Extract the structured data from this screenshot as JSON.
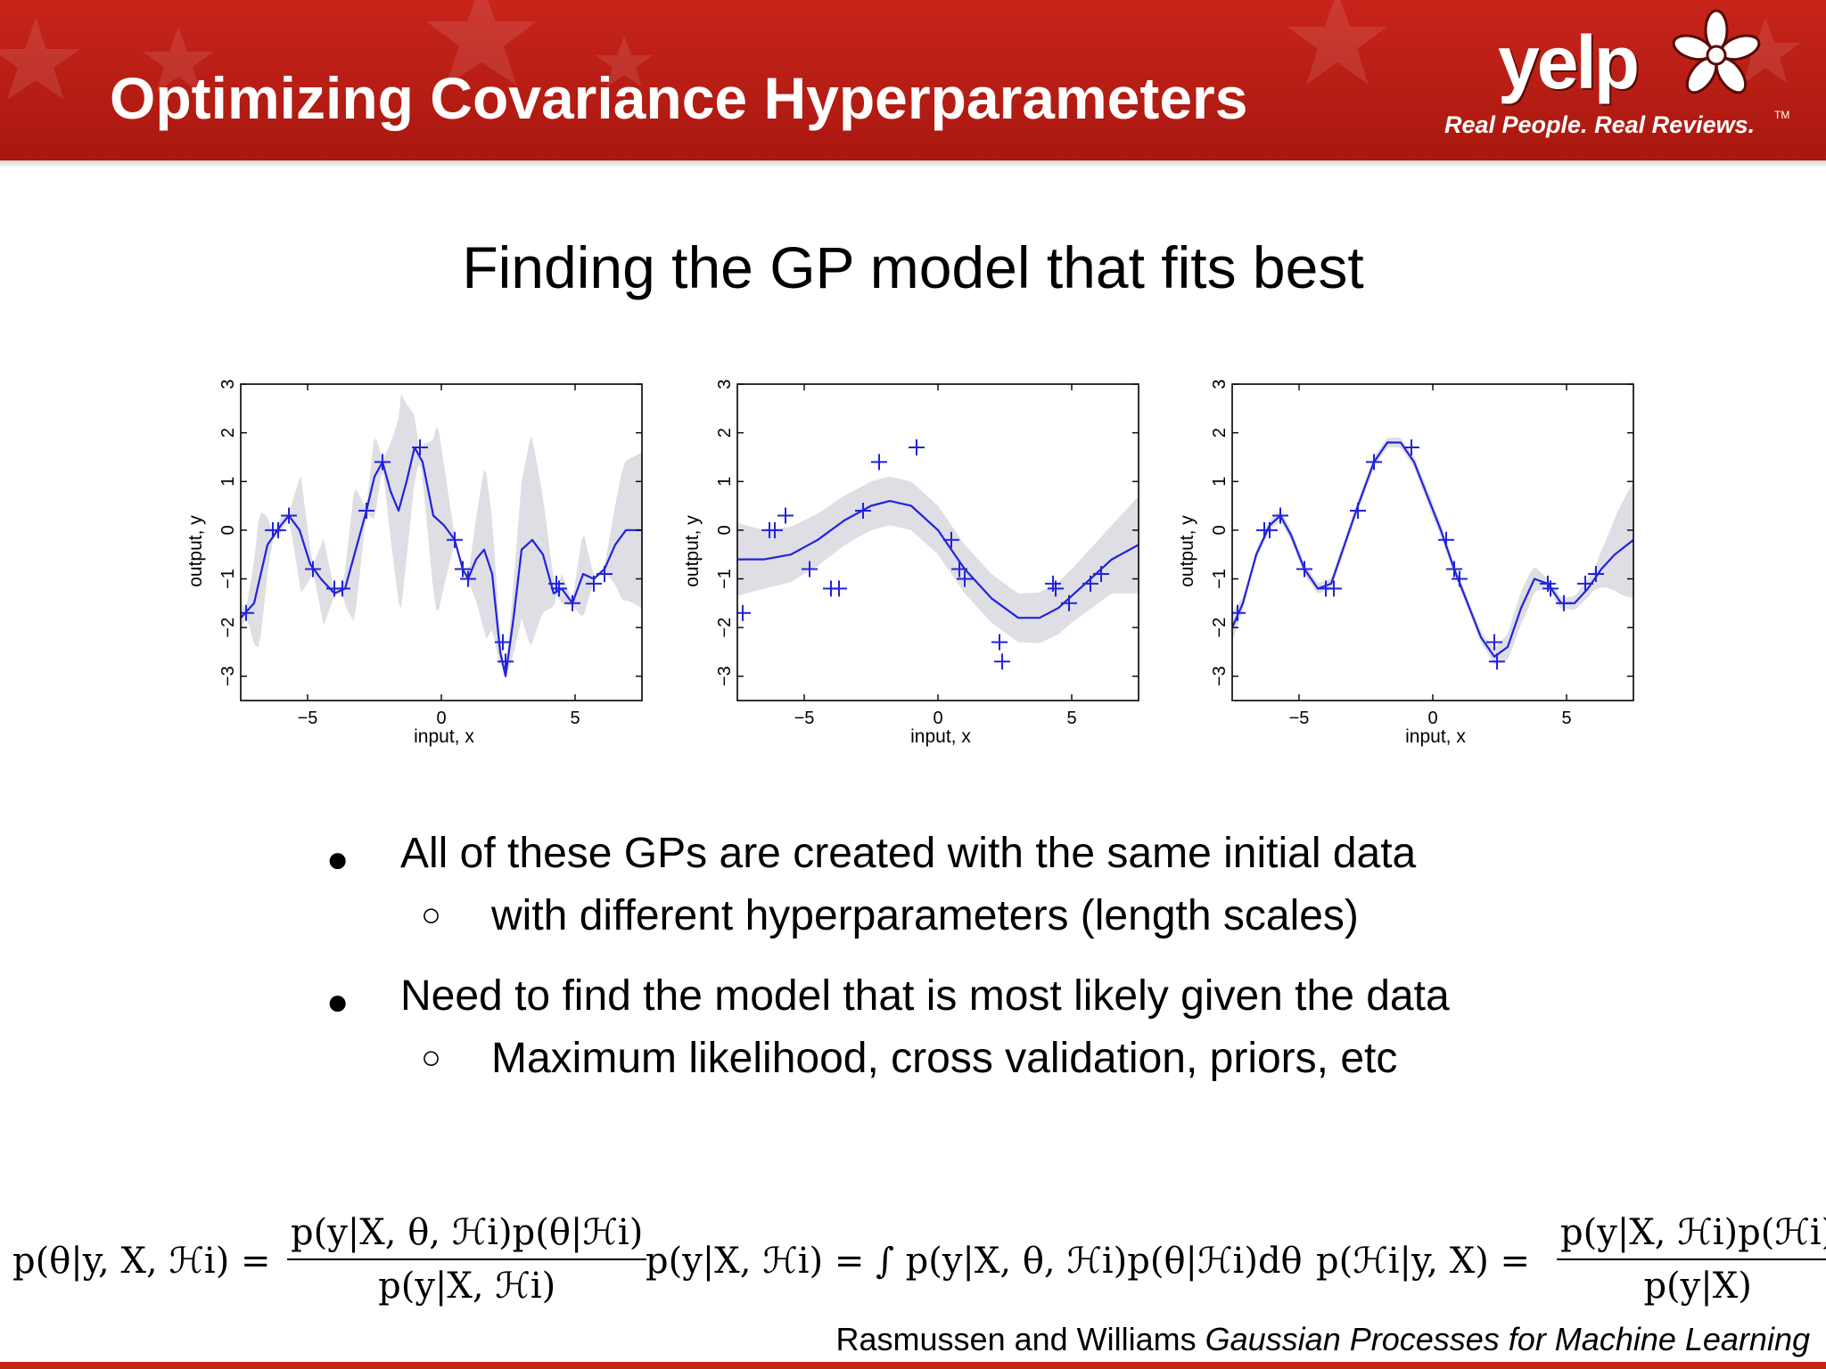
{
  "header": {
    "title": "Optimizing Covariance Hyperparameters",
    "brand_color": "#c8241a",
    "logo": {
      "word": "yelp",
      "tagline": "Real People. Real Reviews.",
      "tm": "TM"
    }
  },
  "subtitle": "Finding the GP model that fits best",
  "plots": [
    {
      "xlabel": "input, x",
      "ylabel": "output, y",
      "xticks": [
        "−5",
        "0",
        "5"
      ],
      "yticks": [
        "−3",
        "−2",
        "−1",
        "0",
        "1",
        "2",
        "3"
      ]
    },
    {
      "xlabel": "input, x",
      "ylabel": "output, y",
      "xticks": [
        "−5",
        "0",
        "5"
      ],
      "yticks": [
        "−3",
        "−2",
        "−1",
        "0",
        "1",
        "2",
        "3"
      ]
    },
    {
      "xlabel": "input, x",
      "ylabel": "output, y",
      "xticks": [
        "−5",
        "0",
        "5"
      ],
      "yticks": [
        "−3",
        "−2",
        "−1",
        "0",
        "1",
        "2",
        "3"
      ]
    }
  ],
  "chart_data": {
    "type": "line",
    "xlim": [
      -7.5,
      7.5
    ],
    "ylim": [
      -3.5,
      3
    ],
    "mean_color": "#2222dd",
    "band_color": "#dedee4",
    "observations": {
      "x": [
        -7.3,
        -6.3,
        -6.1,
        -5.7,
        -4.8,
        -4.0,
        -3.7,
        -2.8,
        -2.2,
        -0.8,
        0.5,
        0.8,
        1.0,
        2.3,
        2.4,
        4.3,
        4.4,
        4.9,
        5.7,
        6.1
      ],
      "y": [
        -1.7,
        0.0,
        0.0,
        0.3,
        -0.8,
        -1.2,
        -1.2,
        0.4,
        1.4,
        1.7,
        -0.2,
        -0.8,
        -1.0,
        -2.3,
        -2.7,
        -1.1,
        -1.2,
        -1.5,
        -1.1,
        -0.9
      ]
    },
    "panels": [
      {
        "mean": [
          [
            -7.5,
            -1.8
          ],
          [
            -7.0,
            -1.5
          ],
          [
            -6.5,
            -0.3
          ],
          [
            -6.0,
            0.1
          ],
          [
            -5.7,
            0.3
          ],
          [
            -5.3,
            0.0
          ],
          [
            -4.9,
            -0.7
          ],
          [
            -4.5,
            -1.0
          ],
          [
            -4.0,
            -1.3
          ],
          [
            -3.6,
            -1.2
          ],
          [
            -3.2,
            -0.4
          ],
          [
            -2.8,
            0.4
          ],
          [
            -2.5,
            1.1
          ],
          [
            -2.2,
            1.4
          ],
          [
            -1.9,
            0.8
          ],
          [
            -1.6,
            0.4
          ],
          [
            -1.3,
            1.0
          ],
          [
            -1.0,
            1.7
          ],
          [
            -0.7,
            1.4
          ],
          [
            -0.3,
            0.3
          ],
          [
            0.1,
            0.1
          ],
          [
            0.5,
            -0.2
          ],
          [
            0.8,
            -0.8
          ],
          [
            1.0,
            -1.0
          ],
          [
            1.3,
            -0.6
          ],
          [
            1.6,
            -0.4
          ],
          [
            1.9,
            -0.9
          ],
          [
            2.2,
            -2.5
          ],
          [
            2.4,
            -3.0
          ],
          [
            2.7,
            -1.8
          ],
          [
            3.0,
            -0.4
          ],
          [
            3.4,
            -0.2
          ],
          [
            3.8,
            -0.5
          ],
          [
            4.2,
            -1.3
          ],
          [
            4.5,
            -1.2
          ],
          [
            4.9,
            -1.5
          ],
          [
            5.3,
            -0.9
          ],
          [
            5.7,
            -1.0
          ],
          [
            6.1,
            -0.8
          ],
          [
            6.5,
            -0.3
          ],
          [
            6.9,
            0.0
          ],
          [
            7.5,
            0.0
          ]
        ],
        "band_halfwidth": [
          [
            -7.5,
            0.3
          ],
          [
            -7.3,
            0.05
          ],
          [
            -6.8,
            1.4
          ],
          [
            -6.3,
            0.05
          ],
          [
            -6.0,
            0.15
          ],
          [
            -5.7,
            0.05
          ],
          [
            -5.25,
            1.2
          ],
          [
            -4.8,
            0.05
          ],
          [
            -4.4,
            0.9
          ],
          [
            -4.0,
            0.05
          ],
          [
            -3.7,
            0.05
          ],
          [
            -3.25,
            1.4
          ],
          [
            -2.8,
            0.05
          ],
          [
            -2.5,
            0.9
          ],
          [
            -2.2,
            0.05
          ],
          [
            -1.5,
            2.2
          ],
          [
            -0.8,
            0.05
          ],
          [
            -0.15,
            2.0
          ],
          [
            0.5,
            0.05
          ],
          [
            0.8,
            0.05
          ],
          [
            1.0,
            0.05
          ],
          [
            1.65,
            1.8
          ],
          [
            2.3,
            0.05
          ],
          [
            2.4,
            0.05
          ],
          [
            3.35,
            2.2
          ],
          [
            4.3,
            0.05
          ],
          [
            4.5,
            0.3
          ],
          [
            4.9,
            0.05
          ],
          [
            5.3,
            0.9
          ],
          [
            5.7,
            0.05
          ],
          [
            6.1,
            0.05
          ],
          [
            6.8,
            1.4
          ],
          [
            7.5,
            1.6
          ]
        ]
      },
      {
        "mean": [
          [
            -7.5,
            -0.6
          ],
          [
            -6.5,
            -0.6
          ],
          [
            -5.5,
            -0.5
          ],
          [
            -4.5,
            -0.2
          ],
          [
            -3.5,
            0.2
          ],
          [
            -2.5,
            0.5
          ],
          [
            -1.8,
            0.6
          ],
          [
            -1.0,
            0.5
          ],
          [
            0.0,
            0.0
          ],
          [
            0.5,
            -0.4
          ],
          [
            1.0,
            -0.8
          ],
          [
            2.0,
            -1.4
          ],
          [
            3.0,
            -1.8
          ],
          [
            3.8,
            -1.8
          ],
          [
            4.5,
            -1.6
          ],
          [
            5.5,
            -1.1
          ],
          [
            6.5,
            -0.6
          ],
          [
            7.5,
            -0.3
          ]
        ],
        "band_halfwidth": [
          [
            -7.5,
            0.75
          ],
          [
            -6.5,
            0.6
          ],
          [
            -5.0,
            0.55
          ],
          [
            -3.0,
            0.5
          ],
          [
            -1.0,
            0.5
          ],
          [
            1.0,
            0.5
          ],
          [
            3.0,
            0.5
          ],
          [
            5.0,
            0.55
          ],
          [
            6.5,
            0.7
          ],
          [
            7.5,
            1.0
          ]
        ]
      },
      {
        "mean": [
          [
            -7.5,
            -2.0
          ],
          [
            -7.1,
            -1.5
          ],
          [
            -6.6,
            -0.5
          ],
          [
            -6.1,
            0.1
          ],
          [
            -5.7,
            0.3
          ],
          [
            -5.3,
            -0.1
          ],
          [
            -4.8,
            -0.8
          ],
          [
            -4.3,
            -1.2
          ],
          [
            -3.8,
            -1.1
          ],
          [
            -3.3,
            -0.3
          ],
          [
            -2.8,
            0.5
          ],
          [
            -2.2,
            1.4
          ],
          [
            -1.7,
            1.8
          ],
          [
            -1.2,
            1.8
          ],
          [
            -0.7,
            1.4
          ],
          [
            -0.2,
            0.7
          ],
          [
            0.3,
            0.0
          ],
          [
            0.8,
            -0.8
          ],
          [
            1.3,
            -1.5
          ],
          [
            1.8,
            -2.2
          ],
          [
            2.3,
            -2.6
          ],
          [
            2.8,
            -2.4
          ],
          [
            3.3,
            -1.6
          ],
          [
            3.8,
            -1.0
          ],
          [
            4.3,
            -1.1
          ],
          [
            4.8,
            -1.5
          ],
          [
            5.3,
            -1.5
          ],
          [
            5.8,
            -1.2
          ],
          [
            6.3,
            -0.8
          ],
          [
            6.8,
            -0.5
          ],
          [
            7.5,
            -0.2
          ]
        ],
        "band_halfwidth": [
          [
            -7.5,
            0.3
          ],
          [
            -7.0,
            0.1
          ],
          [
            -6.0,
            0.1
          ],
          [
            -5.0,
            0.12
          ],
          [
            -4.0,
            0.1
          ],
          [
            -3.0,
            0.12
          ],
          [
            -2.0,
            0.1
          ],
          [
            -1.0,
            0.1
          ],
          [
            0.0,
            0.15
          ],
          [
            1.0,
            0.1
          ],
          [
            2.0,
            0.12
          ],
          [
            3.0,
            0.3
          ],
          [
            3.5,
            0.35
          ],
          [
            4.3,
            0.1
          ],
          [
            5.0,
            0.12
          ],
          [
            6.0,
            0.2
          ],
          [
            6.5,
            0.5
          ],
          [
            7.0,
            0.9
          ],
          [
            7.5,
            1.2
          ]
        ]
      }
    ]
  },
  "bullets": [
    {
      "text": "All of these GPs are created with the same initial data",
      "sub": "with different hyperparameters (length scales)"
    },
    {
      "text": "Need to find the model that is most likely given the data",
      "sub": "Maximum likelihood, cross validation, priors, etc"
    }
  ],
  "bullet_symbol": "●",
  "sub_bullet_symbol": "○",
  "equations": {
    "eq1_lhs": "p(θ|y, X, ℋi)  =",
    "eq1_num": "p(y|X, θ, ℋi)p(θ|ℋi)",
    "eq1_den": "p(y|X, ℋi)",
    "eq2": "p(y|X, ℋi)  =  ∫ p(y|X, θ, ℋi)p(θ|ℋi)dθ",
    "eq3_lhs": "p(ℋi|y, X)  =",
    "eq3_num": "p(y|X, ℋi)p(ℋi)",
    "eq3_den": "p(y|X)"
  },
  "citation": {
    "authors": "Rasmussen and Williams ",
    "book": "Gaussian Processes for Machine Learning"
  }
}
